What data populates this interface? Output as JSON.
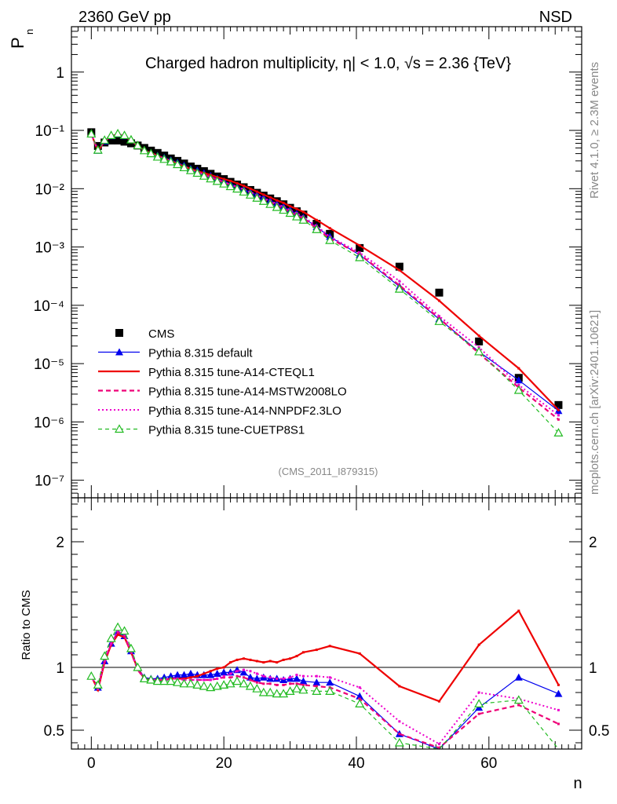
{
  "header": {
    "left_label": "2360 GeV pp",
    "right_label": "NSD",
    "plot_title": "Charged hadron multiplicity, η| < 1.0, √s = 2.36 {TeV}",
    "analysis_id": "(CMS_2011_I879315)"
  },
  "side_text": {
    "rivet": "Rivet 4.1.0, ≥ 2.3M events",
    "mcplots": "mcplots.cern.ch [arXiv:2401.10621]"
  },
  "axes": {
    "top_ylabel": "P",
    "top_ylabel_sub": "n",
    "bottom_ylabel": "Ratio to CMS",
    "xlabel": "n"
  },
  "chart_data": [
    {
      "type": "line",
      "title": "Charged hadron multiplicity, η| < 1.0, √s = 2.36 {TeV}",
      "xlabel": "n",
      "ylabel": "P_n",
      "yscale": "log",
      "xlim": [
        -3,
        74
      ],
      "ylim": [
        5e-08,
        6
      ],
      "xticks": [
        0,
        20,
        40,
        60
      ],
      "yticks": [
        {
          "value": 1e-07,
          "label": "10⁻⁷"
        },
        {
          "value": 1e-06,
          "label": "10⁻⁶"
        },
        {
          "value": 1e-05,
          "label": "10⁻⁵"
        },
        {
          "value": 0.0001,
          "label": "10⁻⁴"
        },
        {
          "value": 0.001,
          "label": "10⁻³"
        },
        {
          "value": 0.01,
          "label": "10⁻²"
        },
        {
          "value": 0.1,
          "label": "10⁻¹"
        },
        {
          "value": 1,
          "label": "1"
        }
      ],
      "series": [
        {
          "name": "CMS",
          "color": "#000000",
          "style": "points",
          "marker": "square",
          "x": [
            0,
            1,
            2,
            3,
            4,
            5,
            6,
            7,
            8,
            9,
            10,
            11,
            12,
            13,
            14,
            15,
            16,
            17,
            18,
            19,
            20,
            21,
            22,
            23,
            24,
            25,
            26,
            27,
            28,
            29,
            30,
            31,
            32,
            34,
            36,
            40.5,
            46.5,
            52.5,
            58.5,
            64.5,
            70.5
          ],
          "y": [
            0.093,
            0.054,
            0.062,
            0.067,
            0.067,
            0.064,
            0.06,
            0.055,
            0.05,
            0.045,
            0.041,
            0.037,
            0.033,
            0.03,
            0.027,
            0.024,
            0.022,
            0.02,
            0.018,
            0.0162,
            0.0146,
            0.0131,
            0.0118,
            0.0106,
            0.0095,
            0.0085,
            0.0076,
            0.0068,
            0.0061,
            0.0054,
            0.0047,
            0.0041,
            0.0036,
            0.0025,
            0.00168,
            0.00096,
            0.00046,
            0.000165,
            2.4e-05,
            5.7e-06,
            1.95e-06
          ]
        },
        {
          "name": "Pythia 8.315 default",
          "color": "#0000ee",
          "style": "solid-thin",
          "marker": "triangle-filled",
          "x": [
            0,
            1,
            2,
            3,
            4,
            5,
            6,
            7,
            8,
            9,
            10,
            11,
            12,
            13,
            14,
            15,
            16,
            17,
            18,
            19,
            20,
            21,
            22,
            23,
            24,
            25,
            26,
            27,
            28,
            29,
            30,
            31,
            32,
            34,
            36,
            40.5,
            46.5,
            52.5,
            58.5,
            64.5,
            70.5
          ],
          "y": [
            0.087,
            0.045,
            0.065,
            0.08,
            0.086,
            0.08,
            0.068,
            0.055,
            0.046,
            0.041,
            0.037,
            0.034,
            0.031,
            0.028,
            0.025,
            0.022,
            0.0205,
            0.0185,
            0.0167,
            0.015,
            0.0135,
            0.012,
            0.0108,
            0.0097,
            0.0087,
            0.0078,
            0.007,
            0.0062,
            0.0055,
            0.0049,
            0.0043,
            0.0037,
            0.0032,
            0.0022,
            0.0015,
            0.00073,
            0.00021,
            5.8e-05,
            1.6e-05,
            5.2e-06,
            1.55e-06
          ]
        },
        {
          "name": "Pythia 8.315 tune-A14-CTEQL1",
          "color": "#ee0000",
          "style": "solid",
          "marker": "none",
          "x": [
            0,
            1,
            2,
            3,
            4,
            5,
            6,
            7,
            8,
            9,
            10,
            11,
            12,
            13,
            14,
            15,
            16,
            17,
            18,
            19,
            20,
            21,
            22,
            23,
            24,
            25,
            26,
            27,
            28,
            29,
            30,
            31,
            32,
            34,
            36,
            40.5,
            46.5,
            52.5,
            58.5,
            64.5,
            70.5
          ],
          "y": [
            0.087,
            0.044,
            0.065,
            0.079,
            0.084,
            0.079,
            0.067,
            0.055,
            0.045,
            0.041,
            0.037,
            0.033,
            0.03,
            0.027,
            0.024,
            0.022,
            0.02,
            0.0186,
            0.0172,
            0.0158,
            0.0146,
            0.0136,
            0.0124,
            0.0112,
            0.01,
            0.0089,
            0.0079,
            0.0071,
            0.0063,
            0.0057,
            0.005,
            0.0045,
            0.004,
            0.0029,
            0.0021,
            0.00106,
            0.0004,
            0.00012,
            3e-05,
            8.3e-06,
            1.6e-06
          ]
        },
        {
          "name": "Pythia 8.315 tune-A14-MSTW2008LO",
          "color": "#ee0077",
          "style": "dashed",
          "marker": "none",
          "x": [
            0,
            1,
            2,
            3,
            4,
            5,
            6,
            7,
            8,
            9,
            10,
            11,
            12,
            13,
            14,
            15,
            16,
            17,
            18,
            19,
            20,
            21,
            22,
            23,
            24,
            25,
            26,
            27,
            28,
            29,
            30,
            31,
            32,
            34,
            36,
            40.5,
            46.5,
            52.5,
            58.5,
            64.5,
            70.5
          ],
          "y": [
            0.087,
            0.045,
            0.066,
            0.08,
            0.086,
            0.08,
            0.067,
            0.054,
            0.045,
            0.04,
            0.036,
            0.033,
            0.03,
            0.027,
            0.024,
            0.021,
            0.0195,
            0.0175,
            0.0158,
            0.0143,
            0.013,
            0.0117,
            0.0107,
            0.0097,
            0.0086,
            0.0075,
            0.0066,
            0.0059,
            0.0052,
            0.0046,
            0.004,
            0.0035,
            0.0031,
            0.0021,
            0.0014,
            0.00075,
            0.00022,
            6e-05,
            1.5e-05,
            3.9e-06,
            1.1e-06
          ]
        },
        {
          "name": "Pythia 8.315 tune-A14-NNPDF2.3LO",
          "color": "#ee00cc",
          "style": "dotted",
          "marker": "none",
          "x": [
            0,
            1,
            2,
            3,
            4,
            5,
            6,
            7,
            8,
            9,
            10,
            11,
            12,
            13,
            14,
            15,
            16,
            17,
            18,
            19,
            20,
            21,
            22,
            23,
            24,
            25,
            26,
            27,
            28,
            29,
            30,
            31,
            32,
            34,
            36,
            40.5,
            46.5,
            52.5,
            58.5,
            64.5,
            70.5
          ],
          "y": [
            0.087,
            0.045,
            0.066,
            0.08,
            0.087,
            0.081,
            0.068,
            0.055,
            0.045,
            0.04,
            0.036,
            0.033,
            0.03,
            0.027,
            0.024,
            0.021,
            0.0195,
            0.0175,
            0.0158,
            0.0143,
            0.0131,
            0.0118,
            0.0108,
            0.0098,
            0.0088,
            0.0078,
            0.0069,
            0.0062,
            0.0055,
            0.0049,
            0.0043,
            0.0038,
            0.0033,
            0.0023,
            0.0015,
            0.0008,
            0.00026,
            6.5e-05,
            1.9e-05,
            4.3e-06,
            1.3e-06
          ]
        },
        {
          "name": "Pythia 8.315 tune-CUETP8S1",
          "color": "#22bb22",
          "style": "dashed-thin",
          "marker": "triangle-open",
          "x": [
            0,
            1,
            2,
            3,
            4,
            5,
            6,
            7,
            8,
            9,
            10,
            11,
            12,
            13,
            14,
            15,
            16,
            17,
            18,
            19,
            20,
            21,
            22,
            23,
            24,
            25,
            26,
            27,
            28,
            29,
            30,
            31,
            32,
            34,
            36,
            40.5,
            46.5,
            52.5,
            58.5,
            64.5,
            70.5
          ],
          "y": [
            0.087,
            0.046,
            0.068,
            0.082,
            0.088,
            0.082,
            0.069,
            0.055,
            0.045,
            0.04,
            0.035,
            0.032,
            0.029,
            0.026,
            0.023,
            0.0205,
            0.0185,
            0.0165,
            0.0148,
            0.0134,
            0.0121,
            0.0109,
            0.0099,
            0.0088,
            0.0078,
            0.0069,
            0.0061,
            0.0054,
            0.0048,
            0.0043,
            0.0038,
            0.0033,
            0.0029,
            0.002,
            0.0013,
            0.00066,
            0.00019,
            5.3e-05,
            1.6e-05,
            3.5e-06,
            6.5e-07
          ]
        }
      ]
    },
    {
      "type": "line",
      "title": "",
      "xlabel": "n",
      "ylabel": "Ratio to CMS",
      "xlim": [
        -3,
        74
      ],
      "ylim": [
        0.35,
        2.35
      ],
      "xticks": [
        0,
        20,
        40,
        60
      ],
      "yticks": [
        0.5,
        1,
        2
      ],
      "reference_line": 1,
      "series": [
        {
          "name": "Pythia 8.315 default",
          "color": "#0000ee",
          "style": "solid-thin",
          "marker": "triangle-filled",
          "x": [
            0,
            1,
            2,
            3,
            4,
            5,
            6,
            7,
            8,
            9,
            10,
            11,
            12,
            13,
            14,
            15,
            16,
            17,
            18,
            19,
            20,
            21,
            22,
            23,
            24,
            25,
            26,
            27,
            28,
            29,
            30,
            31,
            32,
            34,
            36,
            40.5,
            46.5,
            52.5,
            58.5,
            64.5,
            70.5
          ],
          "y": [
            0.93,
            0.84,
            1.05,
            1.19,
            1.28,
            1.25,
            1.13,
            1.0,
            0.92,
            0.91,
            0.91,
            0.92,
            0.93,
            0.94,
            0.94,
            0.95,
            0.94,
            0.94,
            0.94,
            0.95,
            0.96,
            0.96,
            0.98,
            0.96,
            0.92,
            0.91,
            0.92,
            0.91,
            0.91,
            0.9,
            0.91,
            0.91,
            0.89,
            0.88,
            0.88,
            0.77,
            0.47,
            0.31,
            0.68,
            0.92,
            0.79
          ]
        },
        {
          "name": "Pythia 8.315 tune-A14-CTEQL1",
          "color": "#ee0000",
          "style": "solid",
          "marker": "none",
          "x": [
            0,
            1,
            2,
            3,
            4,
            5,
            6,
            7,
            8,
            9,
            10,
            11,
            12,
            13,
            14,
            15,
            16,
            17,
            18,
            19,
            20,
            21,
            22,
            23,
            24,
            25,
            26,
            27,
            28,
            29,
            30,
            31,
            32,
            34,
            36,
            40.5,
            46.5,
            52.5,
            58.5,
            64.5,
            70.5
          ],
          "y": [
            0.93,
            0.82,
            1.04,
            1.18,
            1.26,
            1.24,
            1.12,
            0.99,
            0.91,
            0.9,
            0.9,
            0.9,
            0.91,
            0.91,
            0.91,
            0.92,
            0.93,
            0.95,
            0.97,
            0.99,
            1.0,
            1.04,
            1.06,
            1.07,
            1.06,
            1.05,
            1.04,
            1.05,
            1.04,
            1.06,
            1.07,
            1.09,
            1.12,
            1.14,
            1.17,
            1.11,
            0.85,
            0.73,
            1.18,
            1.45,
            0.86
          ]
        },
        {
          "name": "Pythia 8.315 tune-A14-MSTW2008LO",
          "color": "#ee0077",
          "style": "dashed",
          "marker": "none",
          "x": [
            0,
            1,
            2,
            3,
            4,
            5,
            6,
            7,
            8,
            9,
            10,
            11,
            12,
            13,
            14,
            15,
            16,
            17,
            18,
            19,
            20,
            21,
            22,
            23,
            24,
            25,
            26,
            27,
            28,
            29,
            30,
            31,
            32,
            34,
            36,
            40.5,
            46.5,
            52.5,
            58.5,
            64.5,
            70.5
          ],
          "y": [
            0.93,
            0.84,
            1.06,
            1.19,
            1.28,
            1.25,
            1.12,
            0.98,
            0.91,
            0.9,
            0.9,
            0.9,
            0.91,
            0.91,
            0.9,
            0.9,
            0.9,
            0.9,
            0.9,
            0.91,
            0.92,
            0.92,
            0.93,
            0.92,
            0.9,
            0.88,
            0.87,
            0.87,
            0.86,
            0.86,
            0.87,
            0.87,
            0.86,
            0.85,
            0.84,
            0.75,
            0.47,
            0.36,
            0.63,
            0.7,
            0.55
          ]
        },
        {
          "name": "Pythia 8.315 tune-A14-NNPDF2.3LO",
          "color": "#ee00cc",
          "style": "dotted",
          "marker": "none",
          "x": [
            0,
            1,
            2,
            3,
            4,
            5,
            6,
            7,
            8,
            9,
            10,
            11,
            12,
            13,
            14,
            15,
            16,
            17,
            18,
            19,
            20,
            21,
            22,
            23,
            24,
            25,
            26,
            27,
            28,
            29,
            30,
            31,
            32,
            34,
            36,
            40.5,
            46.5,
            52.5,
            58.5,
            64.5,
            70.5
          ],
          "y": [
            0.93,
            0.83,
            1.05,
            1.19,
            1.29,
            1.26,
            1.13,
            0.99,
            0.91,
            0.9,
            0.9,
            0.9,
            0.91,
            0.91,
            0.9,
            0.9,
            0.9,
            0.9,
            0.9,
            0.91,
            0.93,
            0.95,
            0.97,
            0.98,
            0.97,
            0.95,
            0.93,
            0.92,
            0.91,
            0.91,
            0.92,
            0.94,
            0.93,
            0.93,
            0.92,
            0.84,
            0.57,
            0.39,
            0.8,
            0.75,
            0.66
          ]
        },
        {
          "name": "Pythia 8.315 tune-CUETP8S1",
          "color": "#22bb22",
          "style": "dashed-thin",
          "marker": "triangle-open",
          "x": [
            0,
            1,
            2,
            3,
            4,
            5,
            6,
            7,
            8,
            9,
            10,
            11,
            12,
            13,
            14,
            15,
            16,
            17,
            18,
            19,
            20,
            21,
            22,
            23,
            24,
            25,
            26,
            27,
            28,
            29,
            30,
            31,
            32,
            34,
            36,
            40.5,
            46.5,
            52.5,
            58.5,
            64.5,
            70.5
          ],
          "y": [
            0.93,
            0.86,
            1.09,
            1.23,
            1.32,
            1.29,
            1.15,
            1.0,
            0.91,
            0.9,
            0.89,
            0.89,
            0.89,
            0.88,
            0.87,
            0.87,
            0.86,
            0.85,
            0.84,
            0.85,
            0.86,
            0.87,
            0.89,
            0.87,
            0.85,
            0.83,
            0.8,
            0.8,
            0.79,
            0.79,
            0.81,
            0.83,
            0.82,
            0.81,
            0.81,
            0.71,
            0.4,
            0.3,
            0.71,
            0.74,
            0.34
          ]
        }
      ]
    }
  ]
}
